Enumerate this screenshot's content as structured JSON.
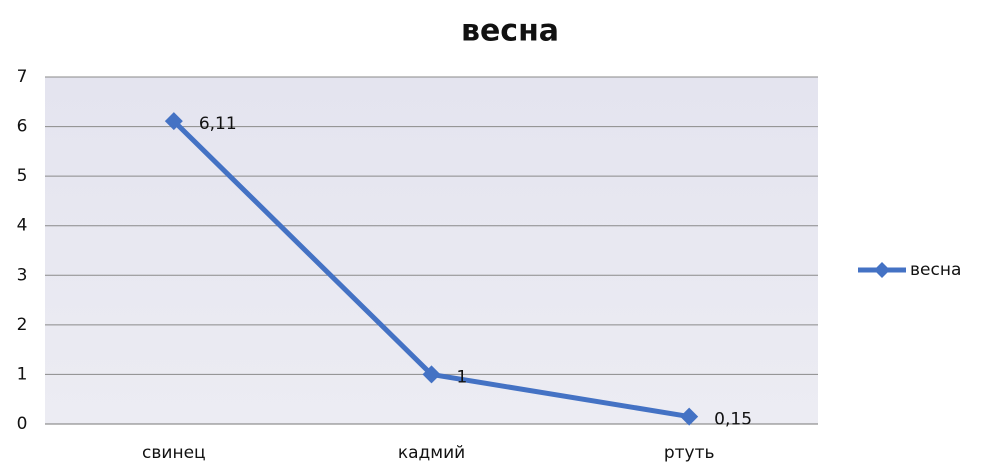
{
  "chart_data": {
    "type": "line",
    "title": "весна",
    "categories": [
      "свинец",
      "кадмий",
      "ртуть"
    ],
    "series": [
      {
        "name": "весна",
        "color": "#4472c4",
        "values": [
          6.11,
          1,
          0.15
        ],
        "value_labels": [
          "6,11",
          "1",
          "0,15"
        ]
      }
    ],
    "ylim": [
      0,
      7
    ],
    "yticks": [
      0,
      1,
      2,
      3,
      4,
      5,
      6,
      7
    ],
    "grid": true,
    "legend": "right"
  }
}
